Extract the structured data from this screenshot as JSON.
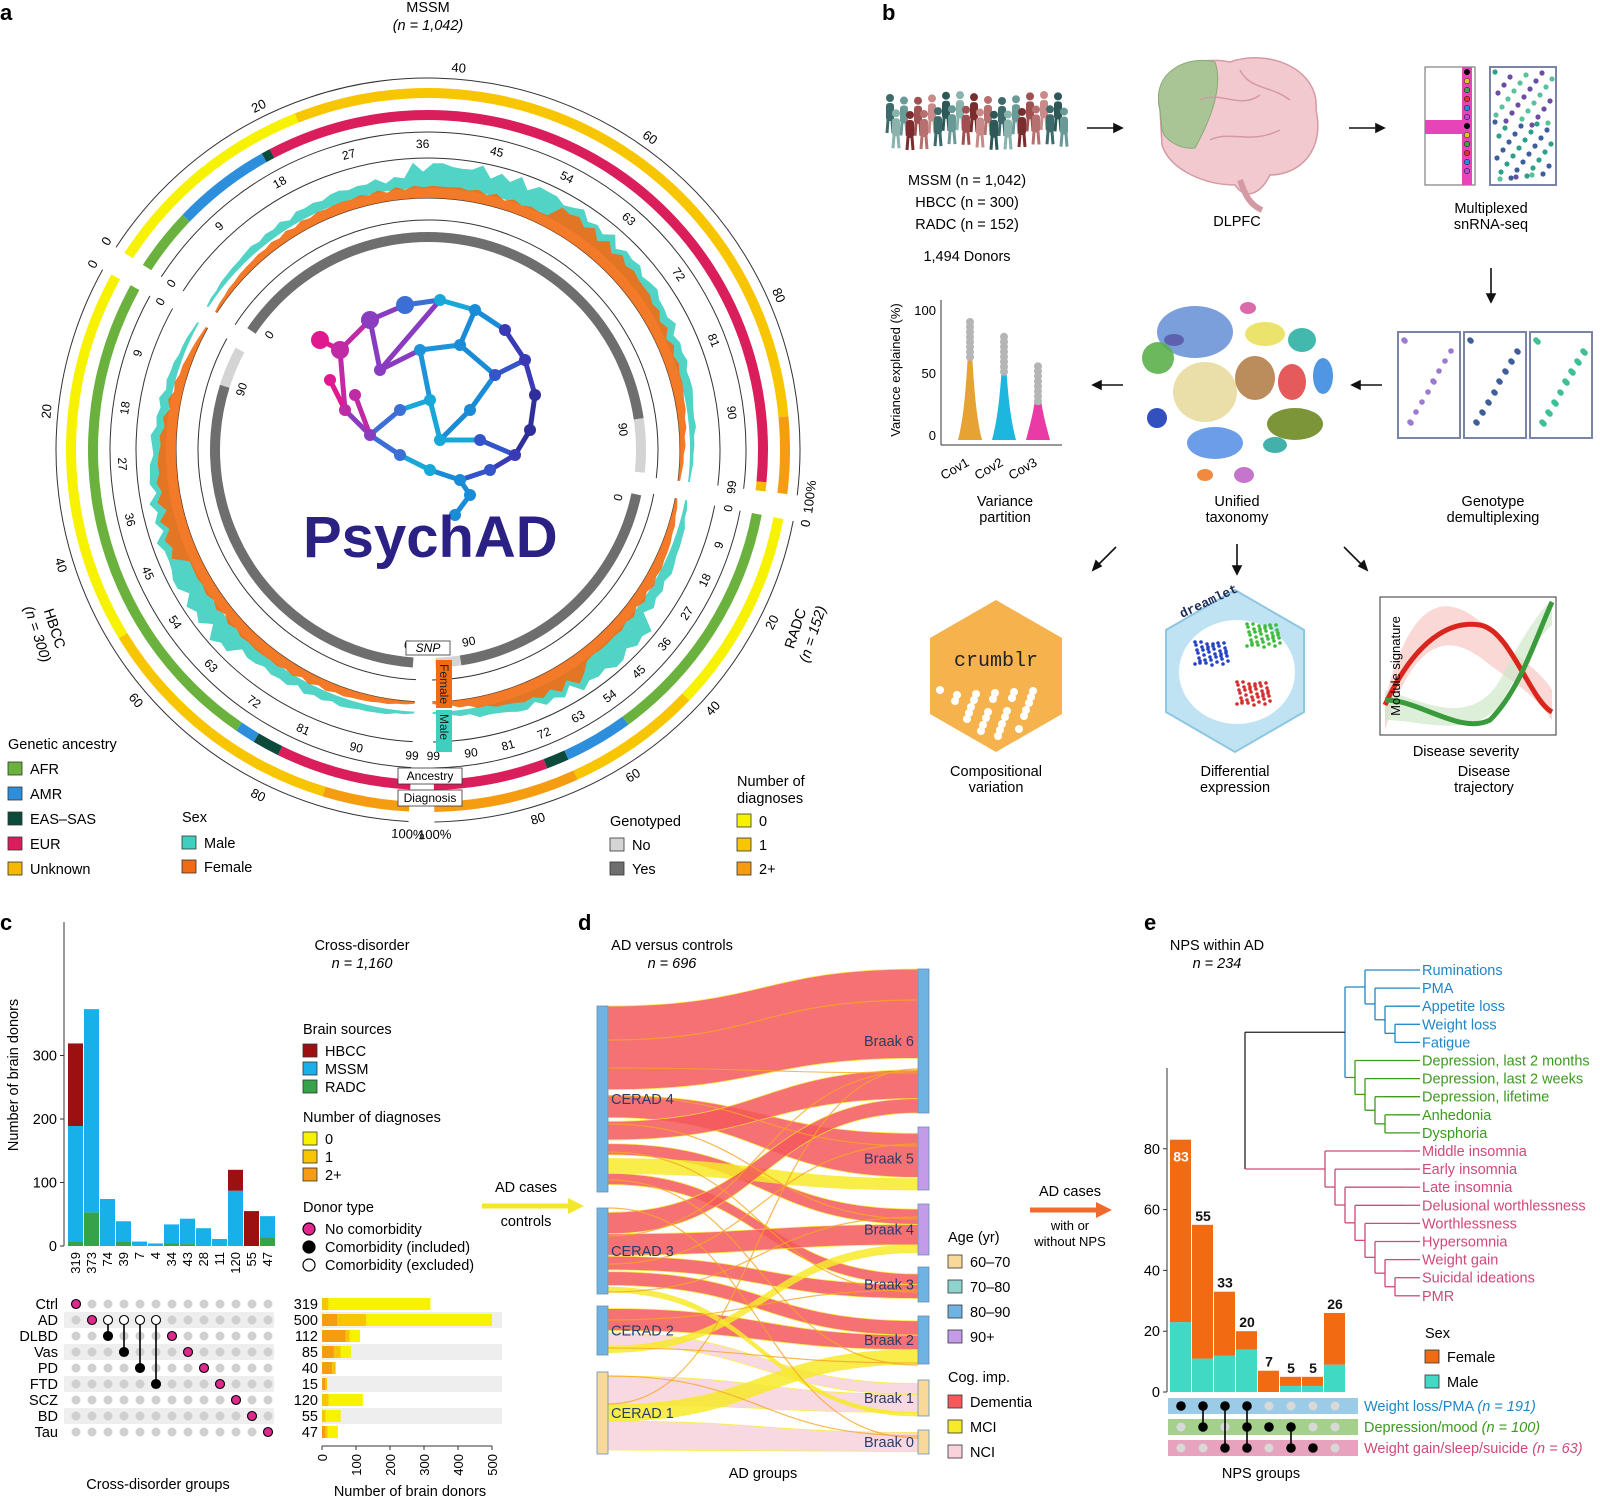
{
  "panels": {
    "a": "a",
    "b": "b",
    "c": "c",
    "d": "d",
    "e": "e"
  },
  "panel_a": {
    "cohort_labels": {
      "mssm": "MSSM",
      "mssm_n": "(n = 1,042)",
      "hbcc": "HBCC",
      "hbcc_n": "(n = 300)",
      "radc": "RADC",
      "radc_n": "(n = 152)"
    },
    "center_logo_text": "PsychAD",
    "track_labels": {
      "snp": "SNP",
      "female": "Female",
      "male": "Male",
      "ancestry": "Ancestry",
      "diagnosis": "Diagnosis"
    },
    "outer_ticks_mssm": [
      "0",
      "20",
      "40",
      "60",
      "80",
      "100%"
    ],
    "outer_ticks_hbcc": [
      "100%",
      "80",
      "60",
      "40",
      "20",
      "0"
    ],
    "outer_ticks_radc": [
      "0",
      "20",
      "40",
      "60",
      "80",
      "100%"
    ],
    "age_ticks_mssm": [
      "0",
      "9",
      "18",
      "27",
      "36",
      "45",
      "54",
      "63",
      "72",
      "81",
      "90",
      "99"
    ],
    "age_ticks_hbcc": [
      "99",
      "90",
      "81",
      "72",
      "63",
      "54",
      "45",
      "36",
      "27",
      "18",
      "9",
      "0"
    ],
    "age_ticks_radc": [
      "0",
      "9",
      "18",
      "27",
      "36",
      "45",
      "54",
      "63",
      "72",
      "81",
      "90",
      "99"
    ],
    "snp_ticks": [
      "0",
      "90",
      "0",
      "90",
      "0",
      "90"
    ],
    "legend_ancestry": {
      "title": "Genetic ancestry",
      "items": [
        {
          "label": "AFR",
          "color": "#6ab23d"
        },
        {
          "label": "AMR",
          "color": "#2d8fdc"
        },
        {
          "label": "EAS–SAS",
          "color": "#0c4a3c"
        },
        {
          "label": "EUR",
          "color": "#d91e5b"
        },
        {
          "label": "Unknown",
          "color": "#f5b900"
        }
      ]
    },
    "legend_sex": {
      "title": "Sex",
      "items": [
        {
          "label": "Male",
          "color": "#3ecfbf"
        },
        {
          "label": "Female",
          "color": "#f26b12"
        }
      ]
    },
    "legend_genotyped": {
      "title": "Genotyped",
      "items": [
        {
          "label": "No",
          "color": "#d4d4d4"
        },
        {
          "label": "Yes",
          "color": "#6e6e6e"
        }
      ]
    },
    "legend_ndiag": {
      "title_line1": "Number of",
      "title_line2": "diagnoses",
      "items": [
        {
          "label": "0",
          "color": "#f7f200"
        },
        {
          "label": "1",
          "color": "#f8c600"
        },
        {
          "label": "2+",
          "color": "#f59c10"
        }
      ]
    }
  },
  "panel_b": {
    "donor_lines": [
      "MSSM (n = 1,042)",
      "HBCC (n = 300)",
      "RADC (n = 152)"
    ],
    "donor_total": "1,494 Donors",
    "dlpfc": "DLPFC",
    "multiplexed": [
      "Multiplexed",
      "snRNA-seq"
    ],
    "genotype_demux": [
      "Genotype",
      "demultiplexing"
    ],
    "unified_taxonomy": [
      "Unified",
      "taxonomy"
    ],
    "variance_partition": [
      "Variance",
      "partition"
    ],
    "violin": {
      "ylabel": "Variance explained (%)",
      "yticks": [
        "100",
        "50",
        "0"
      ],
      "xticks": [
        "Cov1",
        "Cov2",
        "Cov3"
      ]
    },
    "crumblr": "crumblr",
    "dreamlet": "dreamlet",
    "compositional": [
      "Compositional",
      "variation"
    ],
    "differential": [
      "Differential",
      "expression"
    ],
    "trajectory": {
      "ylabel": "Module signature",
      "xlabel": "Disease severity",
      "caption": [
        "Disease",
        "trajectory"
      ]
    }
  },
  "panel_c": {
    "title": "Cross-disorder",
    "n": "n = 1,160",
    "ylabel": "Number of brain donors",
    "yticks": [
      0,
      100,
      200,
      300
    ],
    "xlabel": "Cross-disorder groups",
    "legend_sources": {
      "title": "Brain sources",
      "items": [
        {
          "label": "HBCC",
          "color": "#9b1111"
        },
        {
          "label": "MSSM",
          "color": "#17b0e8"
        },
        {
          "label": "RADC",
          "color": "#36a34b"
        }
      ]
    },
    "legend_ndiag": {
      "title": "Number of diagnoses",
      "items": [
        {
          "label": "0",
          "color": "#f7f200"
        },
        {
          "label": "1",
          "color": "#f8c600"
        },
        {
          "label": "2+",
          "color": "#f59c10"
        }
      ]
    },
    "legend_donor": {
      "title": "Donor type",
      "items": [
        {
          "label": "No comorbidity",
          "style": "magenta"
        },
        {
          "label": "Comorbidity (included)",
          "style": "black"
        },
        {
          "label": "Comorbidity (excluded)",
          "style": "open"
        }
      ]
    },
    "bars": [
      {
        "label": "319",
        "hbcc": 130,
        "mssm": 182,
        "radc": 7
      },
      {
        "label": "373",
        "hbcc": 0,
        "mssm": 320,
        "radc": 53
      },
      {
        "label": "74",
        "hbcc": 0,
        "mssm": 74,
        "radc": 0
      },
      {
        "label": "39",
        "hbcc": 0,
        "mssm": 32,
        "radc": 7
      },
      {
        "label": "7",
        "hbcc": 0,
        "mssm": 6,
        "radc": 1
      },
      {
        "label": "4",
        "hbcc": 0,
        "mssm": 4,
        "radc": 0
      },
      {
        "label": "34",
        "hbcc": 0,
        "mssm": 30,
        "radc": 4
      },
      {
        "label": "43",
        "hbcc": 0,
        "mssm": 40,
        "radc": 3
      },
      {
        "label": "28",
        "hbcc": 0,
        "mssm": 28,
        "radc": 0
      },
      {
        "label": "11",
        "hbcc": 0,
        "mssm": 11,
        "radc": 0
      },
      {
        "label": "120",
        "hbcc": 33,
        "mssm": 87,
        "radc": 0
      },
      {
        "label": "55",
        "hbcc": 55,
        "mssm": 0,
        "radc": 0
      },
      {
        "label": "47",
        "hbcc": 0,
        "mssm": 33,
        "radc": 14
      }
    ],
    "matrix_rows": [
      "Ctrl",
      "AD",
      "DLBD",
      "Vas",
      "PD",
      "FTD",
      "SCZ",
      "BD",
      "Tau"
    ],
    "matrix_points": [
      {
        "col": 0,
        "row": 0,
        "type": "magenta"
      },
      {
        "col": 1,
        "row": 1,
        "type": "magenta"
      },
      {
        "col": 2,
        "row": 1,
        "type": "open"
      },
      {
        "col": 2,
        "row": 2,
        "type": "black"
      },
      {
        "col": 3,
        "row": 1,
        "type": "open"
      },
      {
        "col": 3,
        "row": 3,
        "type": "black"
      },
      {
        "col": 4,
        "row": 1,
        "type": "open"
      },
      {
        "col": 4,
        "row": 4,
        "type": "black"
      },
      {
        "col": 5,
        "row": 1,
        "type": "open"
      },
      {
        "col": 5,
        "row": 5,
        "type": "black"
      },
      {
        "col": 6,
        "row": 2,
        "type": "magenta"
      },
      {
        "col": 7,
        "row": 3,
        "type": "magenta"
      },
      {
        "col": 8,
        "row": 4,
        "type": "magenta"
      },
      {
        "col": 9,
        "row": 5,
        "type": "magenta"
      },
      {
        "col": 10,
        "row": 6,
        "type": "magenta"
      },
      {
        "col": 11,
        "row": 7,
        "type": "magenta"
      },
      {
        "col": 12,
        "row": 8,
        "type": "magenta"
      }
    ],
    "hbars": [
      {
        "label": "319",
        "d0": 300,
        "d1": 19,
        "d2": 0
      },
      {
        "label": "500",
        "d0": 370,
        "d1": 85,
        "d2": 45
      },
      {
        "label": "112",
        "d0": 30,
        "d1": 12,
        "d2": 70
      },
      {
        "label": "85",
        "d0": 30,
        "d1": 20,
        "d2": 35
      },
      {
        "label": "40",
        "d0": 0,
        "d1": 10,
        "d2": 30
      },
      {
        "label": "15",
        "d0": 0,
        "d1": 5,
        "d2": 10
      },
      {
        "label": "120",
        "d0": 100,
        "d1": 20,
        "d2": 0
      },
      {
        "label": "55",
        "d0": 45,
        "d1": 10,
        "d2": 0
      },
      {
        "label": "47",
        "d0": 30,
        "d1": 7,
        "d2": 10
      }
    ],
    "hxticks": [
      0,
      100,
      200,
      300,
      400,
      500
    ],
    "hxlabel": "Number of brain donors"
  },
  "arrow_cd": {
    "top": "AD cases",
    "bottom": "controls"
  },
  "panel_d": {
    "title": "AD versus controls",
    "n": "n = 696",
    "xlabel": "AD groups",
    "left_nodes": [
      "CERAD 4",
      "CERAD 3",
      "CERAD 2",
      "CERAD 1"
    ],
    "right_nodes": [
      "Braak 6",
      "Braak 5",
      "Braak 4",
      "Braak 3",
      "Braak 2",
      "Braak 1",
      "Braak 0"
    ],
    "legend_age": {
      "title": "Age (yr)",
      "items": [
        {
          "label": "60–70",
          "color": "#f8d99a"
        },
        {
          "label": "70–80",
          "color": "#8fd3cf"
        },
        {
          "label": "80–90",
          "color": "#6fb3e2"
        },
        {
          "label": "90+",
          "color": "#c39be8"
        }
      ]
    },
    "legend_cog": {
      "title": "Cog. imp.",
      "items": [
        {
          "label": "Dementia",
          "color": "#f4595c"
        },
        {
          "label": "MCI",
          "color": "#f7ea2a"
        },
        {
          "label": "NCI",
          "color": "#f9d3dc"
        }
      ]
    }
  },
  "arrow_de": {
    "top": "AD cases",
    "mid": "with or",
    "bottom": "without NPS"
  },
  "panel_e": {
    "title": "NPS within AD",
    "n": "n = 234",
    "yticks": [
      0,
      20,
      40,
      60,
      80
    ],
    "xlabel": "NPS groups",
    "bars": [
      {
        "label": "83",
        "female": 60,
        "male": 23
      },
      {
        "label": "55",
        "female": 44,
        "male": 11
      },
      {
        "label": "33",
        "female": 21,
        "male": 12
      },
      {
        "label": "20",
        "female": 6,
        "male": 14
      },
      {
        "label": "7",
        "female": 7,
        "male": 0
      },
      {
        "label": "5",
        "female": 3,
        "male": 2
      },
      {
        "label": "5",
        "female": 3,
        "male": 2
      },
      {
        "label": "26",
        "female": 17,
        "male": 9
      }
    ],
    "legend_sex": {
      "title": "Sex",
      "items": [
        {
          "label": "Female",
          "color": "#f26b12"
        },
        {
          "label": "Male",
          "color": "#3fd9c4"
        }
      ]
    },
    "groups": [
      {
        "label": "Weight loss/PMA",
        "n": "(n = 191)",
        "color": "#1f86c6",
        "band": "#9ccbe8"
      },
      {
        "label": "Depression/mood",
        "n": "(n = 100)",
        "color": "#3c9a1f",
        "band": "#a5d08c"
      },
      {
        "label": "Weight gain/sleep/suicide",
        "n": "(n = 63)",
        "color": "#d0497a",
        "band": "#e7a3bd"
      }
    ],
    "matrix_points": [
      {
        "col": 0,
        "row": 0
      },
      {
        "col": 1,
        "row": 0
      },
      {
        "col": 1,
        "row": 1
      },
      {
        "col": 2,
        "row": 0
      },
      {
        "col": 2,
        "row": 2
      },
      {
        "col": 3,
        "row": 0
      },
      {
        "col": 3,
        "row": 1
      },
      {
        "col": 3,
        "row": 2
      },
      {
        "col": 4,
        "row": 1
      },
      {
        "col": 5,
        "row": 1
      },
      {
        "col": 5,
        "row": 2
      },
      {
        "col": 6,
        "row": 2
      }
    ],
    "tree_blue": [
      "Ruminations",
      "PMA",
      "Appetite loss",
      "Weight loss",
      "Fatigue"
    ],
    "tree_green": [
      "Depression, last 2 months",
      "Depression, last 2 weeks",
      "Depression, lifetime",
      "Anhedonia",
      "Dysphoria"
    ],
    "tree_pink": [
      "Middle insomnia",
      "Early insomnia",
      "Late insomnia",
      "Delusional worthlessness",
      "Worthlessness",
      "Hypersomnia",
      "Weight gain",
      "Suicidal ideations",
      "PMR"
    ],
    "colors": {
      "blue": "#1f86c6",
      "green": "#3c9a1f",
      "pink": "#d0497a"
    }
  }
}
